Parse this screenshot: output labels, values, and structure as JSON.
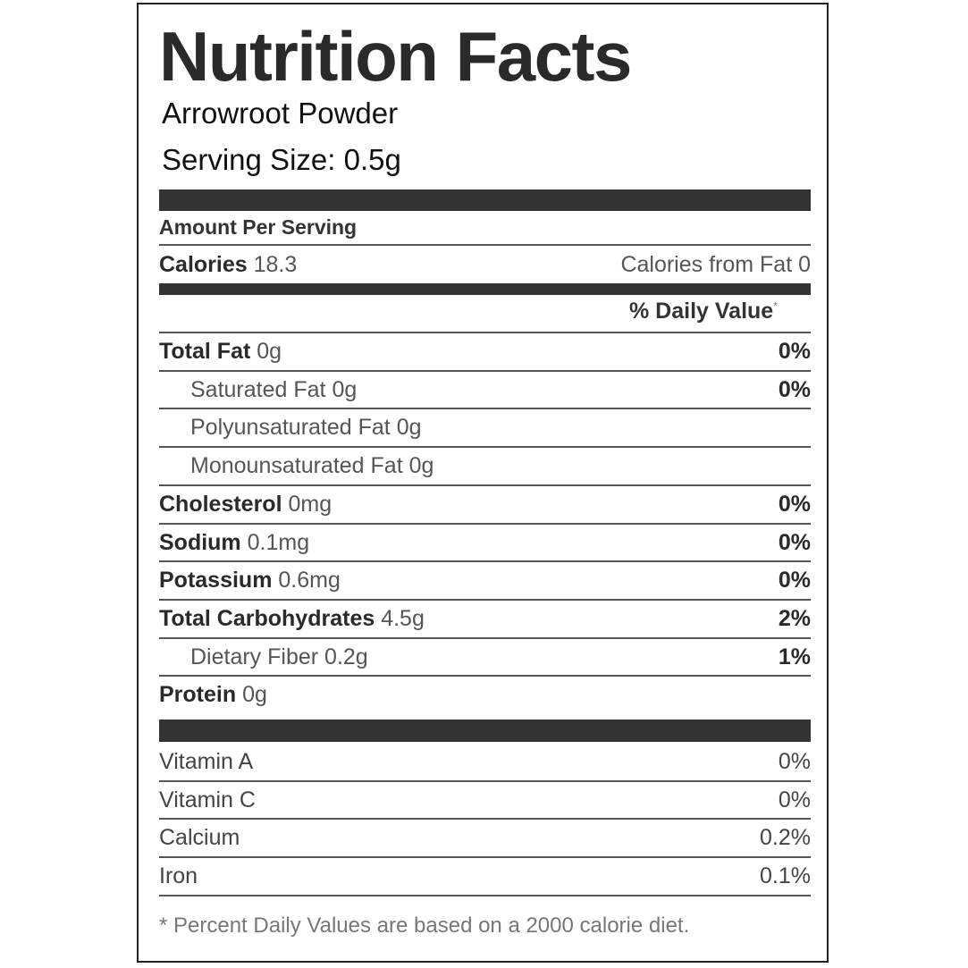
{
  "header": {
    "title": "Nutrition Facts",
    "product": "Arrowroot Powder",
    "serving_size": "Serving Size: 0.5g"
  },
  "amount_per_serving": "Amount Per Serving",
  "calories": {
    "label": "Calories",
    "value": "18.3",
    "from_fat": "Calories from Fat 0"
  },
  "daily_value_header": {
    "label": "% Daily Value",
    "mark": "*"
  },
  "nutrients": [
    {
      "name": "Total Fat",
      "amount": "0g",
      "percent": "0%",
      "indent": false
    },
    {
      "name": "Saturated Fat",
      "amount": "0g",
      "percent": "0%",
      "indent": true
    },
    {
      "name": "Polyunsaturated Fat",
      "amount": "0g",
      "indent": true
    },
    {
      "name": "Monounsaturated Fat",
      "amount": "0g",
      "indent": true
    },
    {
      "name": "Cholesterol",
      "amount": "0mg",
      "percent": "0%",
      "indent": false
    },
    {
      "name": "Sodium",
      "amount": "0.1mg",
      "percent": "0%",
      "indent": false
    },
    {
      "name": "Potassium",
      "amount": "0.6mg",
      "percent": "0%",
      "indent": false
    },
    {
      "name": "Total Carbohydrates",
      "amount": "4.5g",
      "percent": "2%",
      "indent": false
    },
    {
      "name": "Dietary Fiber",
      "amount": "0.2g",
      "percent": "1%",
      "indent": true
    },
    {
      "name": "Protein",
      "amount": "0g",
      "indent": false
    }
  ],
  "vitamins": [
    {
      "name": "Vitamin A",
      "percent": "0%"
    },
    {
      "name": "Vitamin C",
      "percent": "0%"
    },
    {
      "name": "Calcium",
      "percent": "0.2%"
    },
    {
      "name": "Iron",
      "percent": "0.1%"
    }
  ],
  "footnote": "* Percent Daily Values are based on a 2000 calorie diet."
}
